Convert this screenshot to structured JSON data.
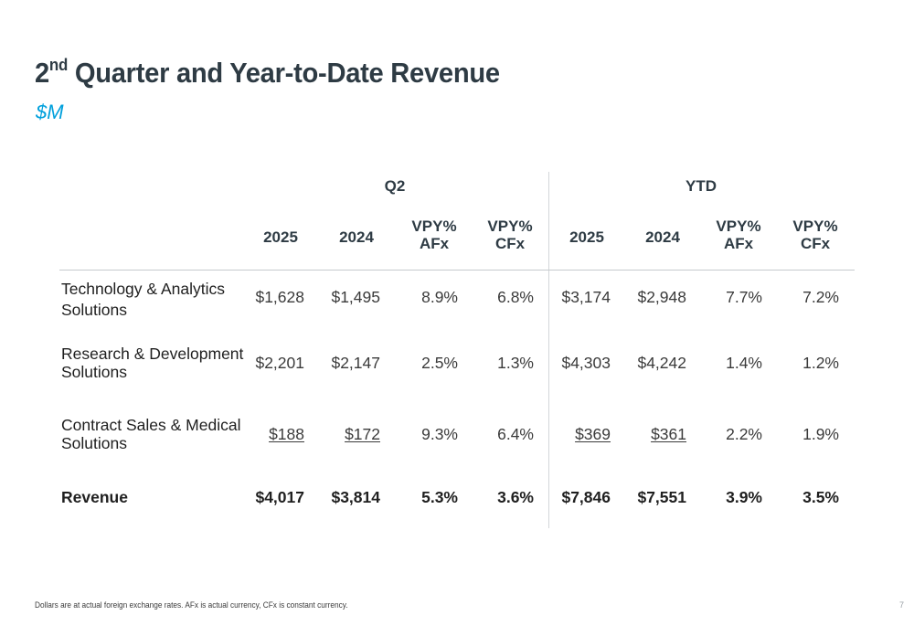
{
  "slide": {
    "title_base": "2",
    "title_sup": "nd",
    "title_rest": " Quarter and Year-to-Date Revenue",
    "subtitle": "$M",
    "footnote": "Dollars are at actual foreign exchange rates. AFx is actual currency, CFx is constant currency.",
    "page_number": "7"
  },
  "table": {
    "groups": [
      "Q2",
      "YTD"
    ],
    "columns": [
      [
        "2025"
      ],
      [
        "2024"
      ],
      [
        "VPY%",
        "AFx"
      ],
      [
        "VPY%",
        "CFx"
      ],
      [
        "2025"
      ],
      [
        "2024"
      ],
      [
        "VPY%",
        "AFx"
      ],
      [
        "VPY%",
        "CFx"
      ]
    ],
    "rows": [
      {
        "label_lines": [
          "Technology & Analytics",
          "Solutions"
        ],
        "values": [
          "$1,628",
          "$1,495",
          "8.9%",
          "6.8%",
          "$3,174",
          "$2,948",
          "7.7%",
          "7.2%"
        ],
        "underlined": false,
        "bold": false
      },
      {
        "label_lines": [
          "Research & Development",
          "Solutions"
        ],
        "values": [
          "$2,201",
          "$2,147",
          "2.5%",
          "1.3%",
          "$4,303",
          "$4,242",
          "1.4%",
          "1.2%"
        ],
        "underlined": false,
        "bold": false
      },
      {
        "label_lines": [
          "Contract Sales & Medical",
          "Solutions"
        ],
        "values": [
          "$188",
          "$172",
          "9.3%",
          "6.4%",
          "$369",
          "$361",
          "2.2%",
          "1.9%"
        ],
        "underlined": true,
        "bold": false
      },
      {
        "label_lines": [
          "Revenue"
        ],
        "values": [
          "$4,017",
          "$3,814",
          "5.3%",
          "3.6%",
          "$7,846",
          "$7,551",
          "3.9%",
          "3.5%"
        ],
        "underlined": false,
        "bold": true
      }
    ]
  }
}
